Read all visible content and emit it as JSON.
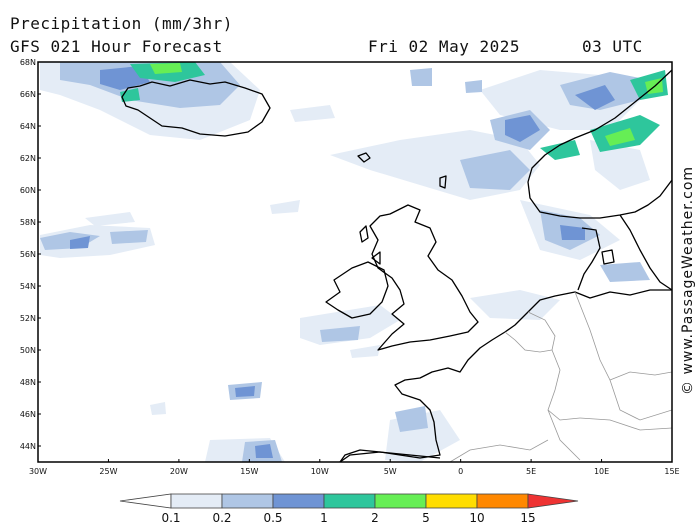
{
  "title": {
    "line1": "Precipitation (mm/3hr)",
    "model": "GFS 021 Hour Forecast",
    "date": "Fri 02 May 2025",
    "time": "03 UTC"
  },
  "credit": "© www.PassageWeather.com",
  "map": {
    "lat_range": [
      43,
      68
    ],
    "lon_range": [
      -30,
      15
    ],
    "lat_labels": [
      "68N",
      "66N",
      "64N",
      "62N",
      "60N",
      "58N",
      "56N",
      "54N",
      "52N",
      "50N",
      "48N",
      "46N",
      "44N"
    ],
    "lon_labels": [
      "30W",
      "25W",
      "20W",
      "15W",
      "10W",
      "5W",
      "0",
      "5E",
      "10E",
      "15E"
    ]
  },
  "legend": {
    "labels": [
      "0.1",
      "0.2",
      "0.5",
      "1",
      "2",
      "5",
      "10",
      "15"
    ],
    "colors": [
      "#ffffff",
      "#e4ecf6",
      "#afc6e5",
      "#6f94d4",
      "#2ec69c",
      "#66ee55",
      "#ffdd00",
      "#ff8800",
      "#ee3333"
    ]
  }
}
